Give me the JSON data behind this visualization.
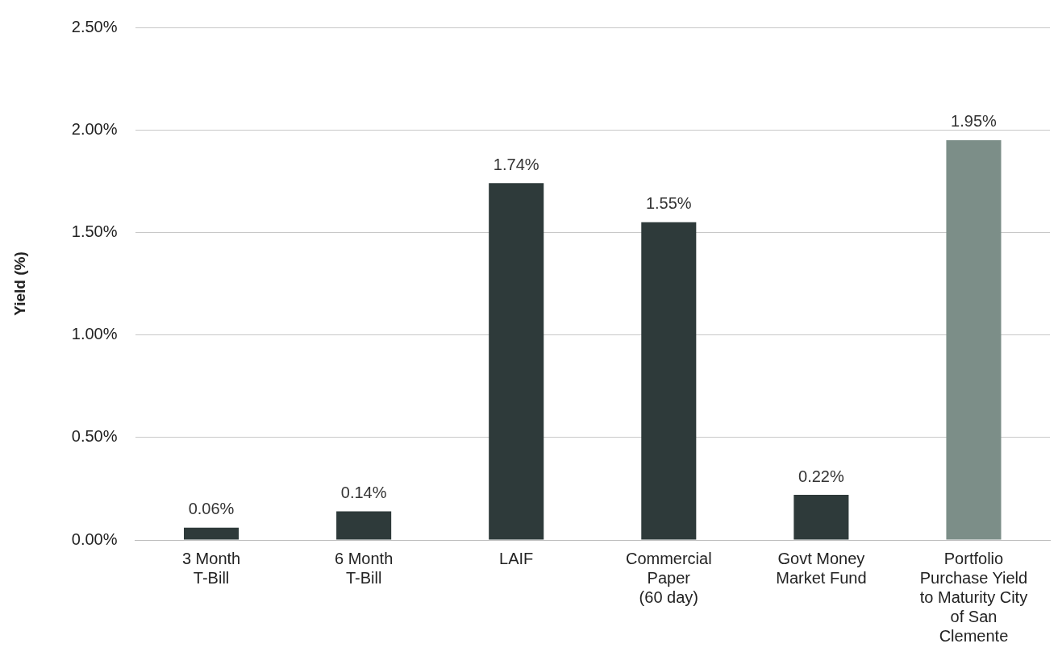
{
  "chart_data": {
    "type": "bar",
    "ylabel": "Yield (%)",
    "categories": [
      "3 Month\nT-Bill",
      "6 Month\nT-Bill",
      "LAIF",
      "Commercial\nPaper\n(60 day)",
      "Govt Money\nMarket Fund",
      "Portfolio\nPurchase Yield\nto Maturity City\nof San\nClemente"
    ],
    "values": [
      0.06,
      0.14,
      1.74,
      1.55,
      0.22,
      1.95
    ],
    "colors": [
      "#2e3a3a",
      "#2e3a3a",
      "#2e3a3a",
      "#2e3a3a",
      "#2e3a3a",
      "#7c8e88"
    ],
    "value_labels": [
      "0.06%",
      "0.14%",
      "1.74%",
      "1.55%",
      "0.22%",
      "1.95%"
    ],
    "ylim": [
      0,
      2.5
    ],
    "yticks": [
      {
        "value": 0,
        "label": "0.00%"
      },
      {
        "value": 0.5,
        "label": "0.50%"
      },
      {
        "value": 1,
        "label": "1.00%"
      },
      {
        "value": 1.5,
        "label": "1.50%"
      },
      {
        "value": 2,
        "label": "2.00%"
      },
      {
        "value": 2.5,
        "label": "2.50%"
      }
    ],
    "grid": "y",
    "legend": false
  }
}
